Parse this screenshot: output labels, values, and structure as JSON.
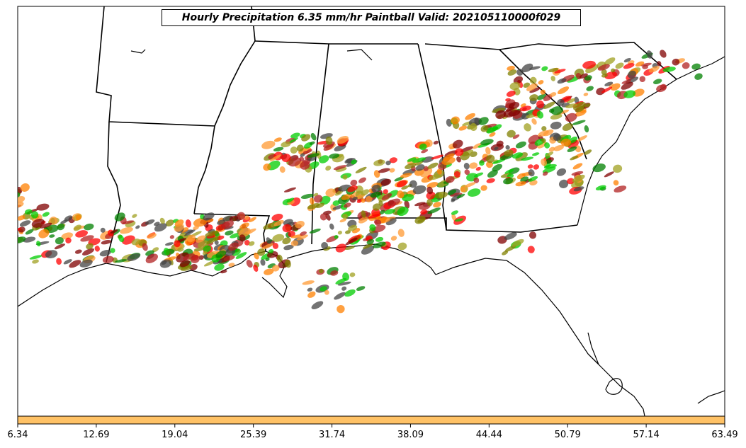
{
  "title": "Hourly Precipitation 6.35 mm/hr Paintball Valid: 202105110000f029",
  "colors": {
    "map_border": "#000000",
    "state_lines": "#000000",
    "colorbar_fill": "#ffc266",
    "paintball_members": [
      "#ff0000",
      "#ff8000",
      "#008000",
      "#00cc00",
      "#800000",
      "#a0a020",
      "#444444",
      "#b22222",
      "#ff9933",
      "#808000"
    ]
  },
  "colorbar": {
    "tick_labels": [
      "6.34",
      "12.69",
      "19.04",
      "25.39",
      "31.74",
      "38.09",
      "44.44",
      "50.79",
      "57.14",
      "63.49"
    ],
    "range": [
      6.34,
      63.49
    ]
  }
}
